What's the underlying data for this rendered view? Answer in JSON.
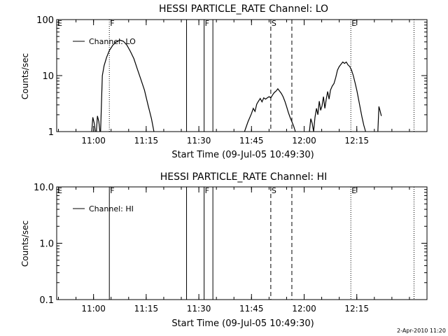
{
  "footer_timestamp": "2-Apr-2010 11:20",
  "chart_data": [
    {
      "type": "line",
      "title": "HESSI PARTICLE_RATE Channel: LO",
      "xlabel": "Start Time (09-Jul-05 10:49:30)",
      "ylabel": "Counts/sec",
      "yscale": "log",
      "xlim_minutes_after_start": [
        0,
        105.5
      ],
      "ylim": [
        1,
        100
      ],
      "x_ticks": [
        "11:00",
        "11:15",
        "11:30",
        "11:45",
        "12:00",
        "12:15"
      ],
      "y_ticks": [
        {
          "value": 1,
          "label": "1"
        },
        {
          "value": 10,
          "label": "10"
        },
        {
          "value": 100,
          "label": "100"
        }
      ],
      "legend": {
        "position": "top-left",
        "entries": [
          "Channel: LO"
        ]
      },
      "series": [
        {
          "name": "Channel: LO",
          "segments": [
            {
              "x": [
                10.0,
                10.3,
                10.7,
                11.0
              ],
              "y": [
                1.0,
                1.8,
                1.4,
                1.0
              ]
            },
            {
              "x": [
                11.3,
                11.6,
                12.0,
                12.3
              ],
              "y": [
                1.0,
                1.9,
                1.5,
                1.0
              ]
            },
            {
              "x": [
                12.5,
                13.0,
                13.5,
                14.2,
                15.0,
                16.0,
                17.0,
                18.0,
                19.0,
                20.0,
                21.0,
                22.0,
                23.0,
                24.0,
                25.0,
                26.0,
                27.0,
                27.7
              ],
              "y": [
                1.0,
                10.0,
                15.0,
                21.0,
                28.0,
                35.0,
                40.0,
                43.0,
                41.0,
                35.0,
                27.0,
                20.0,
                13.0,
                8.5,
                5.5,
                3.0,
                1.7,
                1.0
              ]
            },
            {
              "x": [
                53.5,
                54.5,
                55.5,
                56.0,
                56.5,
                57.0,
                57.5,
                58.0,
                58.5,
                59.0,
                59.5,
                60.0,
                60.5,
                61.0,
                61.5,
                62.0,
                62.5,
                63.0,
                63.5,
                64.0,
                64.5,
                65.0,
                65.5,
                66.0,
                66.5,
                67.0,
                67.5,
                68.0
              ],
              "y": [
                1.0,
                1.5,
                2.1,
                2.6,
                2.3,
                3.1,
                3.5,
                3.9,
                3.4,
                4.0,
                3.8,
                4.0,
                4.2,
                4.0,
                4.5,
                5.0,
                5.3,
                5.8,
                5.3,
                4.8,
                4.2,
                3.5,
                2.8,
                2.2,
                1.8,
                1.5,
                1.25,
                1.0
              ]
            },
            {
              "x": [
                72.0,
                72.4,
                72.8,
                73.2,
                73.6,
                74.0,
                74.4,
                74.8,
                75.2,
                75.6,
                76.0,
                76.4,
                76.8,
                77.2,
                77.6,
                78.0,
                78.5,
                79.0,
                79.5,
                80.0,
                80.5,
                81.0,
                81.5,
                82.0,
                82.5,
                83.0,
                83.5,
                84.0,
                84.5,
                85.0,
                85.5,
                86.0,
                86.5,
                87.0,
                87.5,
                88.0
              ],
              "y": [
                1.0,
                1.7,
                1.4,
                1.0,
                1.8,
                2.6,
                2.0,
                3.5,
                2.4,
                2.9,
                4.2,
                2.6,
                3.8,
                5.2,
                3.8,
                5.5,
                6.5,
                7.2,
                9.2,
                12.5,
                14.5,
                16.0,
                17.5,
                16.5,
                17.5,
                15.5,
                14.5,
                12.5,
                10.0,
                7.5,
                5.5,
                3.8,
                2.6,
                1.8,
                1.3,
                1.0
              ]
            },
            {
              "x": [
                91.5,
                91.8,
                92.1,
                92.5
              ],
              "y": [
                1.0,
                2.8,
                2.4,
                1.9
              ]
            }
          ]
        }
      ],
      "markers": [
        {
          "x": 15.0,
          "style": "dotted",
          "label": "F"
        },
        {
          "x": 37.0,
          "style": "solid",
          "label": ""
        },
        {
          "x": 42.0,
          "style": "solid",
          "label": "F"
        },
        {
          "x": 44.5,
          "style": "solid",
          "label": ""
        },
        {
          "x": 61.0,
          "style": "dashed",
          "label": "S"
        },
        {
          "x": 67.0,
          "style": "dashed",
          "label": ""
        },
        {
          "x": 83.8,
          "style": "dotted",
          "label": "E"
        },
        {
          "x": 101.8,
          "style": "dotted",
          "label": ""
        },
        {
          "x": 0.0,
          "style": "none",
          "label": "E"
        }
      ]
    },
    {
      "type": "line",
      "title": "HESSI PARTICLE_RATE Channel: HI",
      "xlabel": "Start Time (09-Jul-05 10:49:30)",
      "ylabel": "Counts/sec",
      "yscale": "log",
      "xlim_minutes_after_start": [
        0,
        105.5
      ],
      "ylim": [
        0.1,
        10.0
      ],
      "x_ticks": [
        "11:00",
        "11:15",
        "11:30",
        "11:45",
        "12:00",
        "12:15"
      ],
      "y_ticks": [
        {
          "value": 0.1,
          "label": "0.1"
        },
        {
          "value": 1.0,
          "label": "1.0"
        },
        {
          "value": 10.0,
          "label": "10.0"
        }
      ],
      "legend": {
        "position": "top-left",
        "entries": [
          "Channel: HI"
        ]
      },
      "series": [
        {
          "name": "Channel: HI",
          "segments": []
        }
      ],
      "markers": [
        {
          "x": 15.0,
          "style": "solid",
          "label": "F"
        },
        {
          "x": 37.0,
          "style": "solid",
          "label": ""
        },
        {
          "x": 42.0,
          "style": "solid",
          "label": "F"
        },
        {
          "x": 44.5,
          "style": "solid",
          "label": ""
        },
        {
          "x": 61.0,
          "style": "dashed",
          "label": "S"
        },
        {
          "x": 67.0,
          "style": "dashed",
          "label": ""
        },
        {
          "x": 83.8,
          "style": "dotted",
          "label": "E"
        },
        {
          "x": 101.8,
          "style": "dotted",
          "label": ""
        },
        {
          "x": 0.0,
          "style": "none",
          "label": "E"
        }
      ]
    }
  ]
}
